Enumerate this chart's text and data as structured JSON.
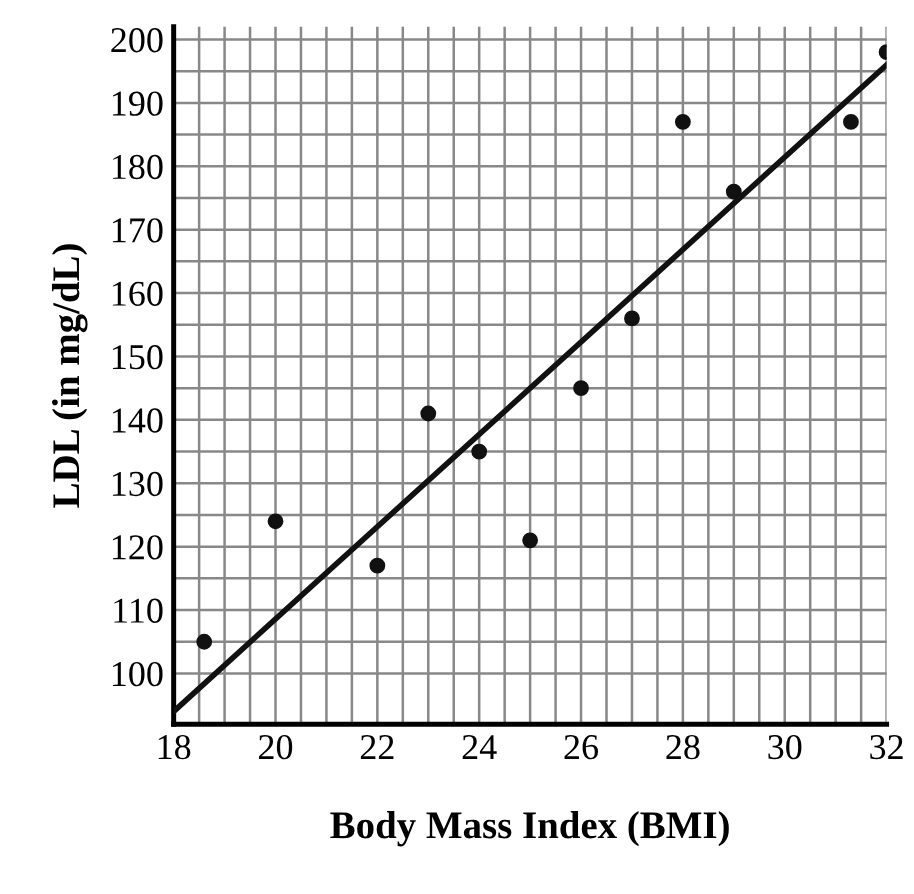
{
  "chart_data": {
    "type": "scatter",
    "xlabel": "Body Mass Index (BMI)",
    "ylabel": "LDL (in mg/dL)",
    "xlim": [
      18,
      32
    ],
    "ylim": [
      92,
      202
    ],
    "xticks": [
      18,
      20,
      22,
      24,
      26,
      28,
      30,
      32
    ],
    "yticks": [
      100,
      110,
      120,
      130,
      140,
      150,
      160,
      170,
      180,
      190,
      200
    ],
    "grid": true,
    "series": [
      {
        "marker": "circle",
        "color": "#111111",
        "x": [
          18.6,
          20,
          22,
          23,
          24,
          25,
          26,
          27,
          28,
          29,
          31.3,
          32
        ],
        "values": [
          105,
          124,
          117,
          141,
          135,
          121,
          145,
          156,
          187,
          176,
          187,
          198
        ]
      },
      {
        "type": "line",
        "marker": "none",
        "color": "#111111",
        "x": [
          18,
          32
        ],
        "values": [
          94,
          196
        ]
      }
    ]
  }
}
